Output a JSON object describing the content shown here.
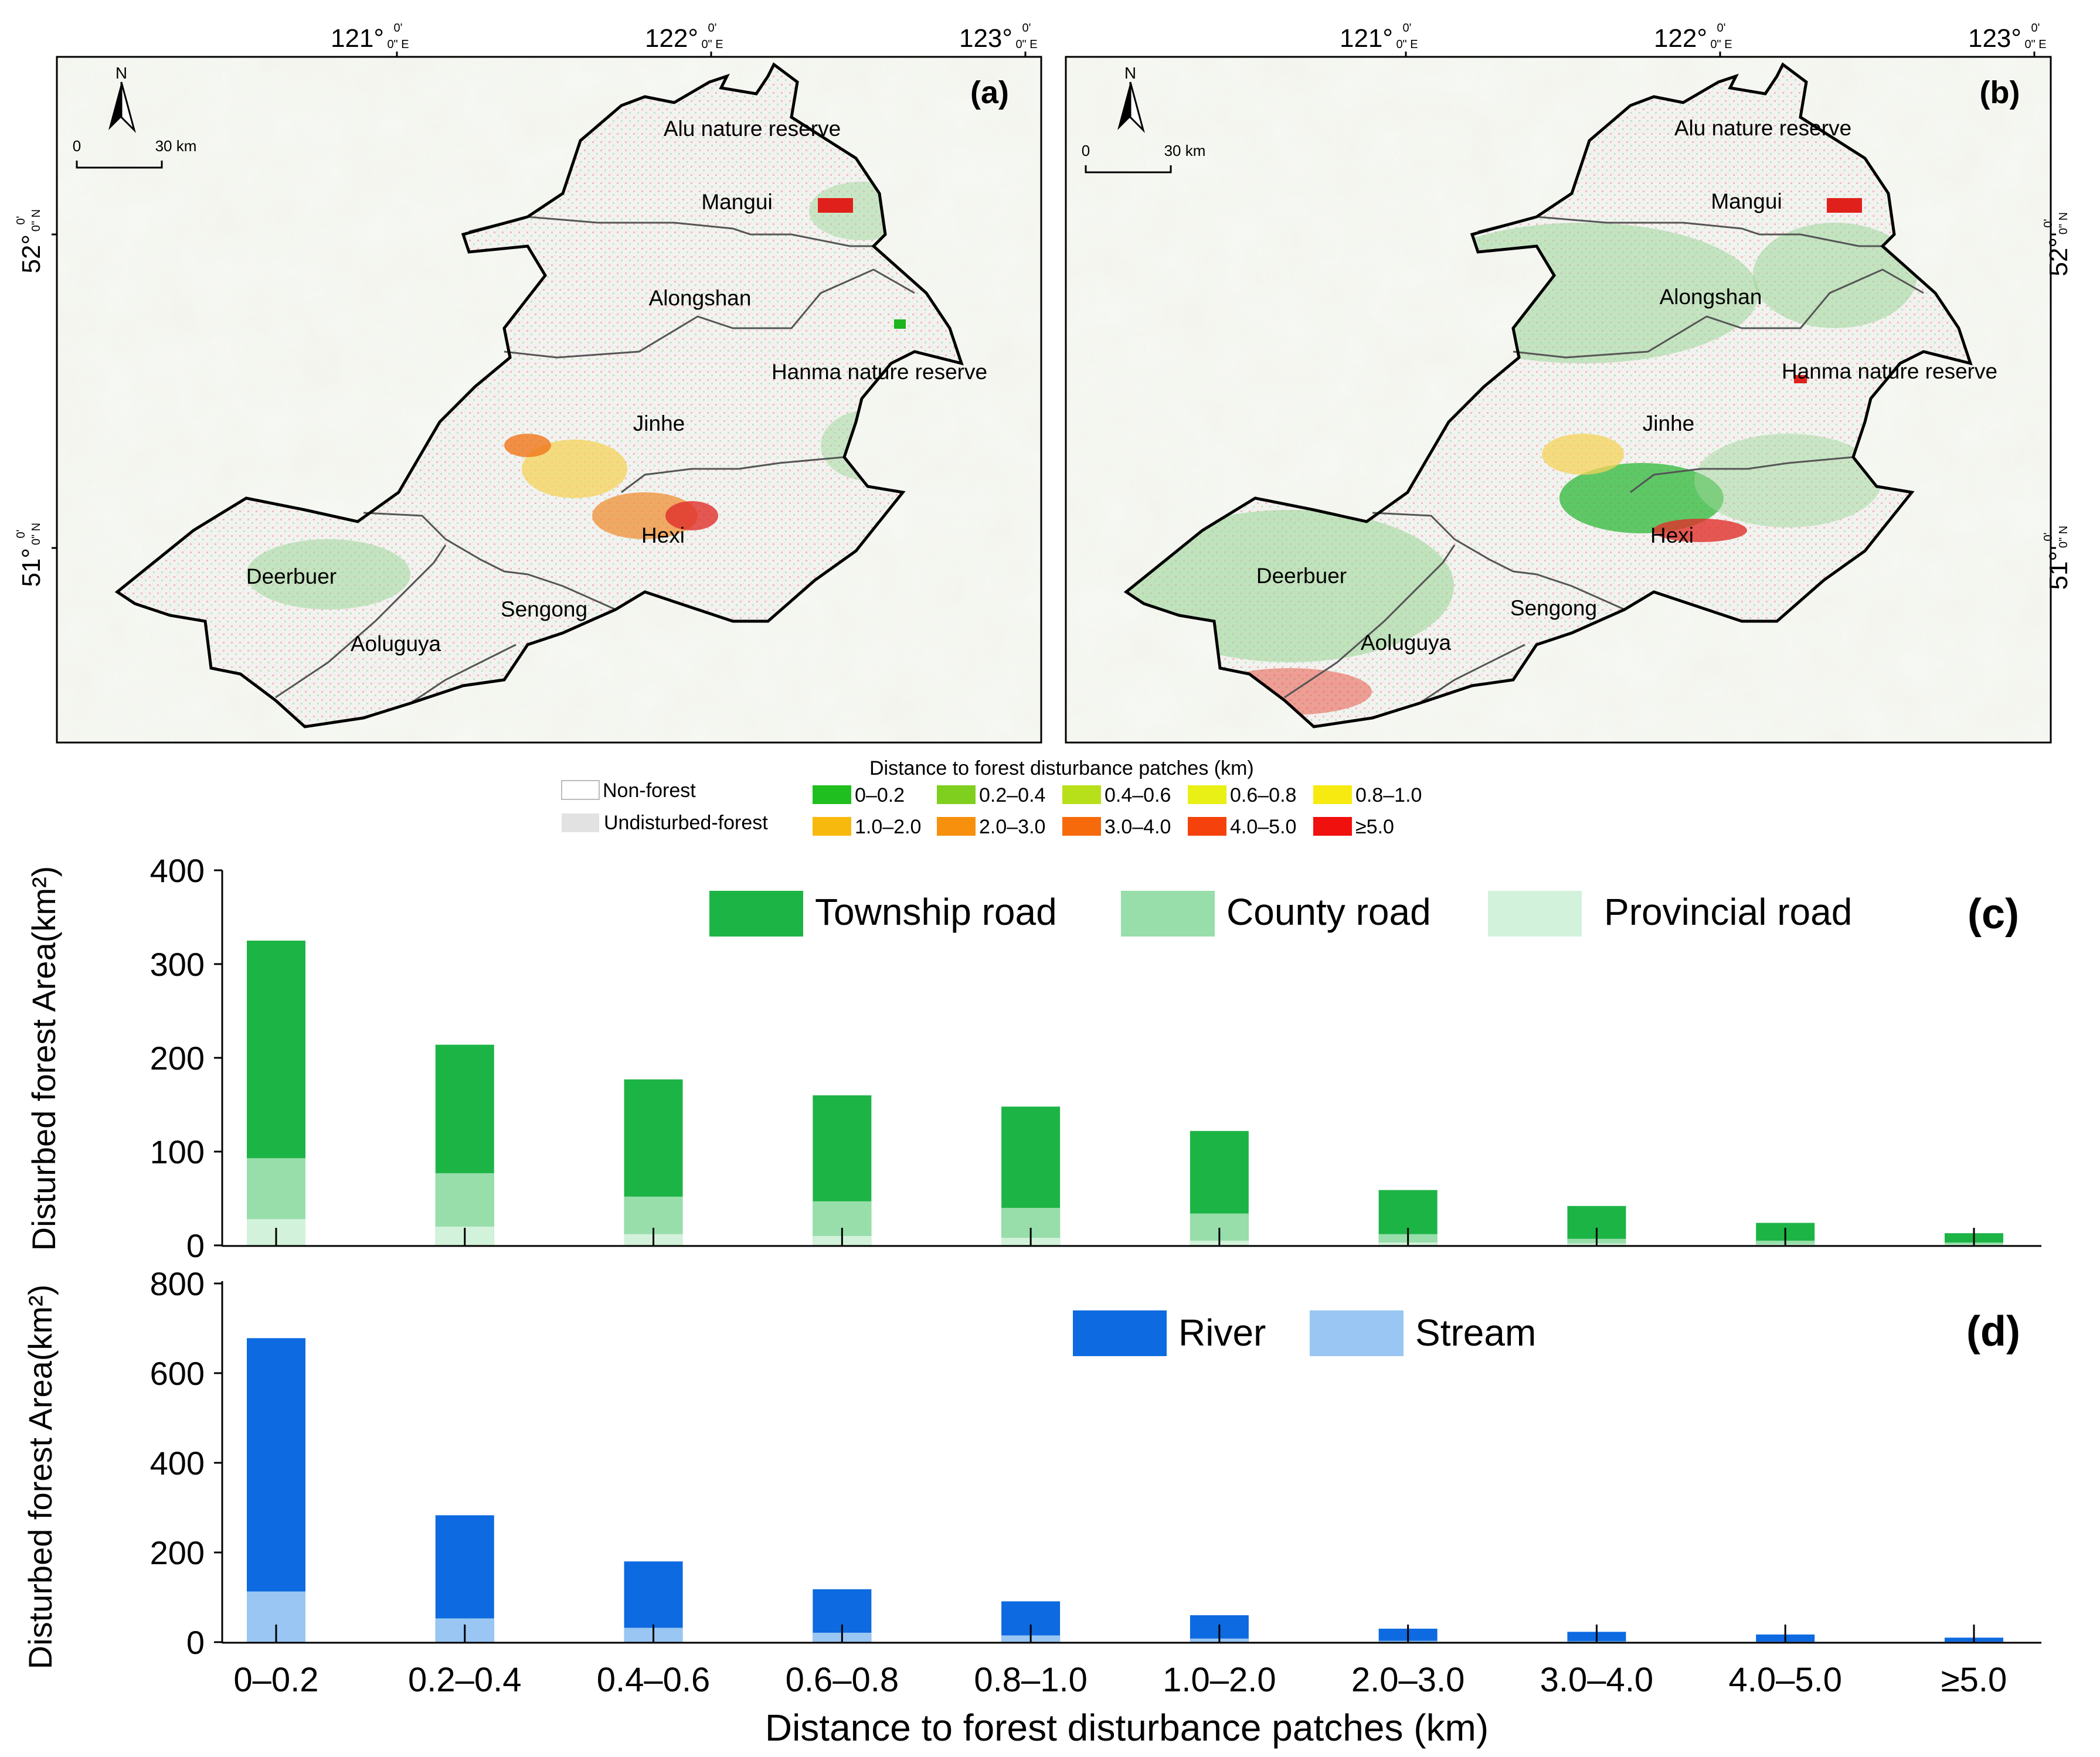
{
  "maps": {
    "a": {
      "panel_label": "(a)",
      "north": "N",
      "scale_start": "0",
      "scale_end": "30 km",
      "places": [
        "Alu nature reserve",
        "Mangui",
        "Alongshan",
        "Hanma nature reserve",
        "Jinhe",
        "Hexi",
        "Deerbuer",
        "Sengong",
        "Aoluguya"
      ]
    },
    "b": {
      "panel_label": "(b)",
      "north": "N",
      "scale_start": "0",
      "scale_end": "30 km",
      "places": [
        "Alu nature reserve",
        "Mangui",
        "Alongshan",
        "Hanma nature reserve",
        "Jinhe",
        "Hexi",
        "Deerbuer",
        "Sengong",
        "Aoluguya"
      ]
    },
    "lon_labels": [
      {
        "deg": "121°",
        "sub1": "0'",
        "sub2": "0\" E"
      },
      {
        "deg": "122°",
        "sub1": "0'",
        "sub2": "0\" E"
      },
      {
        "deg": "123°",
        "sub1": "0'",
        "sub2": "0\" E"
      }
    ],
    "lat_labels": [
      {
        "deg": "52°",
        "sub1": "0'",
        "sub2": "0\" N"
      },
      {
        "deg": "51°",
        "sub1": "0'",
        "sub2": "0\" N"
      }
    ]
  },
  "map_legend": {
    "title": "Distance to forest disturbance patches (km)",
    "nonforest": "Non-forest",
    "undisturbed": "Undisturbed-forest",
    "classes": [
      {
        "label": "0–0.2",
        "color": "#1fbf1f"
      },
      {
        "label": "0.2–0.4",
        "color": "#7fcf1f"
      },
      {
        "label": "0.4–0.6",
        "color": "#b8e01a"
      },
      {
        "label": "0.6–0.8",
        "color": "#e8f015"
      },
      {
        "label": "0.8–1.0",
        "color": "#f6ea10"
      },
      {
        "label": "1.0–2.0",
        "color": "#f8b90e"
      },
      {
        "label": "2.0–3.0",
        "color": "#f7900c"
      },
      {
        "label": "3.0–4.0",
        "color": "#f66a0c"
      },
      {
        "label": "4.0–5.0",
        "color": "#f5420c"
      },
      {
        "label": "≥5.0",
        "color": "#f0100e"
      }
    ]
  },
  "colors": {
    "township": "#1db446",
    "county": "#98deab",
    "provincial": "#d3f2db",
    "river": "#0d6ae0",
    "stream": "#99c6f2"
  },
  "chart_data": [
    {
      "type": "bar",
      "panel_label": "(c)",
      "stacked": true,
      "ylabel": "Disturbed forest Area(km²)",
      "ylim": [
        0,
        400
      ],
      "yticks": [
        0,
        100,
        200,
        300,
        400
      ],
      "categories": [
        "0–0.2",
        "0.2–0.4",
        "0.4–0.6",
        "0.6–0.8",
        "0.8–1.0",
        "1.0–2.0",
        "2.0–3.0",
        "3.0–4.0",
        "4.0–5.0",
        "≥5.0"
      ],
      "series": [
        {
          "name": "Township road",
          "cumulative": [
            325,
            214,
            177,
            160,
            148,
            122,
            59,
            42,
            24,
            13
          ]
        },
        {
          "name": "County road",
          "cumulative": [
            93,
            77,
            52,
            47,
            40,
            34,
            12,
            7,
            5,
            3
          ]
        },
        {
          "name": "Provincial road",
          "cumulative": [
            28,
            20,
            12,
            10,
            8,
            5,
            3,
            2,
            1,
            1
          ]
        }
      ],
      "legend": [
        "Township road",
        "County road",
        "Provincial road"
      ]
    },
    {
      "type": "bar",
      "panel_label": "(d)",
      "stacked": true,
      "ylabel": "Disturbed forest Area(km²)",
      "ylim": [
        0,
        800
      ],
      "yticks": [
        0,
        200,
        400,
        600,
        800
      ],
      "categories": [
        "0–0.2",
        "0.2–0.4",
        "0.4–0.6",
        "0.6–0.8",
        "0.8–1.0",
        "1.0–2.0",
        "2.0–3.0",
        "3.0–4.0",
        "4.0–5.0",
        "≥5.0"
      ],
      "xlabel": "Distance to forest disturbance patches (km)",
      "series": [
        {
          "name": "River",
          "cumulative": [
            678,
            283,
            180,
            118,
            91,
            60,
            30,
            23,
            17,
            10
          ]
        },
        {
          "name": "Stream",
          "cumulative": [
            113,
            53,
            32,
            21,
            15,
            8,
            3,
            2,
            1,
            1
          ]
        }
      ],
      "legend": [
        "River",
        "Stream"
      ]
    }
  ]
}
